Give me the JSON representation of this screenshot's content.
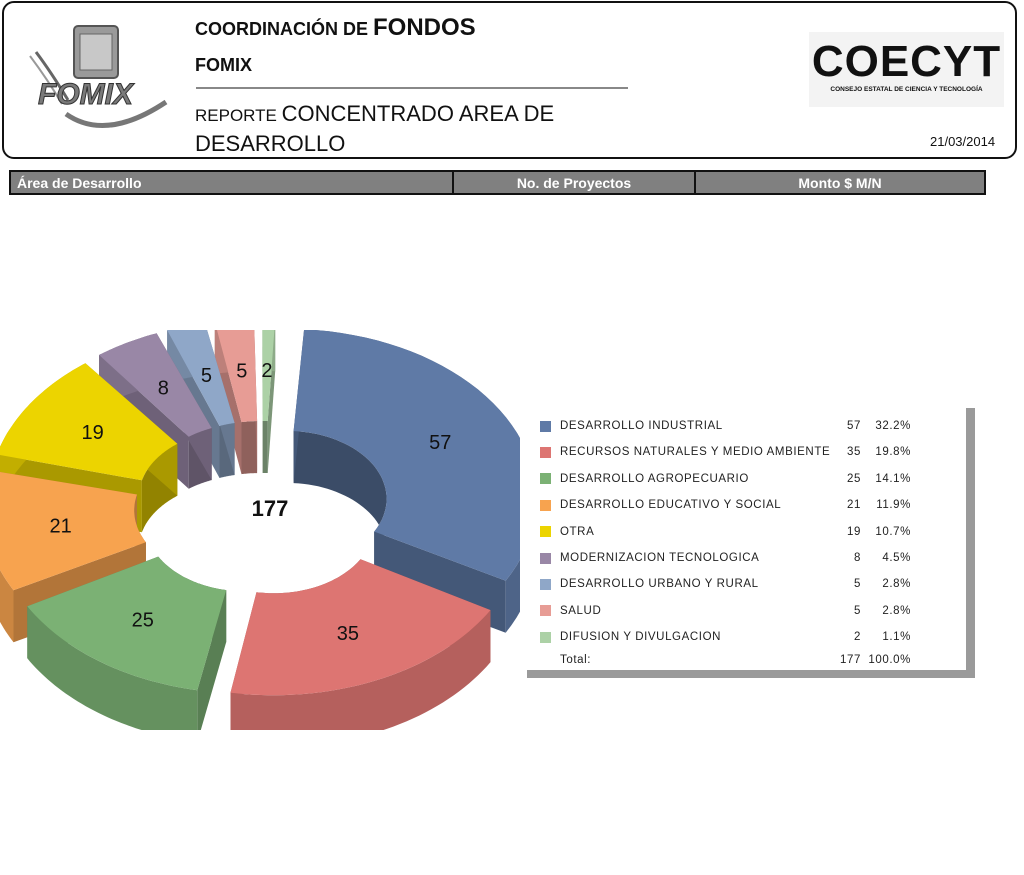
{
  "header": {
    "title_line1_small": "COORDINACIÓN DE ",
    "title_line1_big": "FONDOS",
    "title_line2": "FOMIX",
    "title_line3_small": "REPORTE ",
    "title_line3_big": "CONCENTRADO AREA DE DESARROLLO",
    "left_logo_text": "FOMIX",
    "right_logo_name": "COECYT",
    "right_logo_sub": "CONSEJO ESTATAL DE CIENCIA Y TECNOLOGÍA",
    "date": "21/03/2014"
  },
  "table": {
    "columns": [
      "Área de Desarrollo",
      "No. de Proyectos",
      "Monto $ M/N"
    ]
  },
  "chart_data": {
    "type": "pie",
    "subtype": "3d-exploded-doughnut",
    "title": "",
    "center_label": "177",
    "categories": [
      "DESARROLLO INDUSTRIAL",
      "RECURSOS NATURALES Y MEDIO AMBIENTE",
      "DESARROLLO AGROPECUARIO",
      "DESARROLLO EDUCATIVO Y SOCIAL",
      "OTRA",
      "MODERNIZACION TECNOLOGICA",
      "DESARROLLO URBANO Y RURAL",
      "SALUD",
      "DIFUSION Y DIVULGACION"
    ],
    "values": [
      57,
      35,
      25,
      21,
      19,
      8,
      5,
      5,
      2
    ],
    "percentages": [
      "32.2%",
      "19.8%",
      "14.1%",
      "11.9%",
      "10.7%",
      "4.5%",
      "2.8%",
      "2.8%",
      "1.1%"
    ],
    "colors": [
      "#5f7aa6",
      "#dd7572",
      "#7bb174",
      "#f7a34f",
      "#ecd400",
      "#9987a6",
      "#8fa7c8",
      "#e79c95",
      "#acd1a6"
    ],
    "total_label": "Total:",
    "total_value": "177",
    "total_pct": "100.0%",
    "legend_position": "right"
  }
}
